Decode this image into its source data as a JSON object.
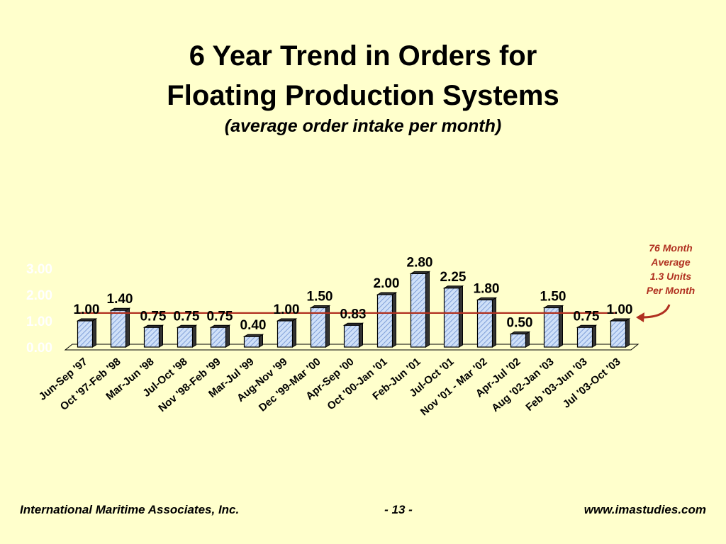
{
  "title_line1": "6 Year Trend in Orders for",
  "title_line2": "Floating Production Systems",
  "subtitle": "(average order intake per month)",
  "footer": {
    "left": "International Maritime Associates, Inc.",
    "center": "- 13 -",
    "right": "www.imastudies.com"
  },
  "annotation": [
    "76 Month",
    "Average",
    "1.3 Units",
    "Per Month"
  ],
  "colors": {
    "background": "#ffffcc",
    "bar_fill": "#cfe0f8",
    "bar_hatch": "#7f9fd8",
    "average_line": "#b03020",
    "annotation": "#b03020",
    "y_tick_labels": "#ffffff"
  },
  "chart_data": {
    "type": "bar",
    "categories": [
      "Jun-Sep '97",
      "Oct '97-Feb '98",
      "Mar-Jun '98",
      "Jul-Oct '98",
      "Nov '98-Feb '99",
      "Mar-Jul '99",
      "Aug-Nov '99",
      "Dec '99-Mar '00",
      "Apr-Sep '00",
      "Oct '00-Jan '01",
      "Feb-Jun '01",
      "Jul-Oct '01",
      "Nov '01 - Mar '02",
      "Apr-Jul '02",
      "Aug '02-Jan '03",
      "Feb '03-Jun '03",
      "Jul '03-Oct '03"
    ],
    "values": [
      1.0,
      1.4,
      0.75,
      0.75,
      0.75,
      0.4,
      1.0,
      1.5,
      0.83,
      2.0,
      2.8,
      2.25,
      1.8,
      0.5,
      1.5,
      0.75,
      1.0
    ],
    "value_labels": [
      "1.00",
      "1.40",
      "0.75",
      "0.75",
      "0.75",
      "0.40",
      "1.00",
      "1.50",
      "0.83",
      "2.00",
      "2.80",
      "2.25",
      "1.80",
      "0.50",
      "1.50",
      "0.75",
      "1.00"
    ],
    "y_ticks": [
      0,
      1,
      2,
      3
    ],
    "y_tick_labels": [
      "0.00",
      "1.00",
      "2.00",
      "3.00"
    ],
    "ylim": [
      0,
      3
    ],
    "average": 1.3,
    "grid": false,
    "legend": "none",
    "title": "6 Year Trend in Orders for Floating Production Systems",
    "xlabel": "",
    "ylabel": ""
  }
}
